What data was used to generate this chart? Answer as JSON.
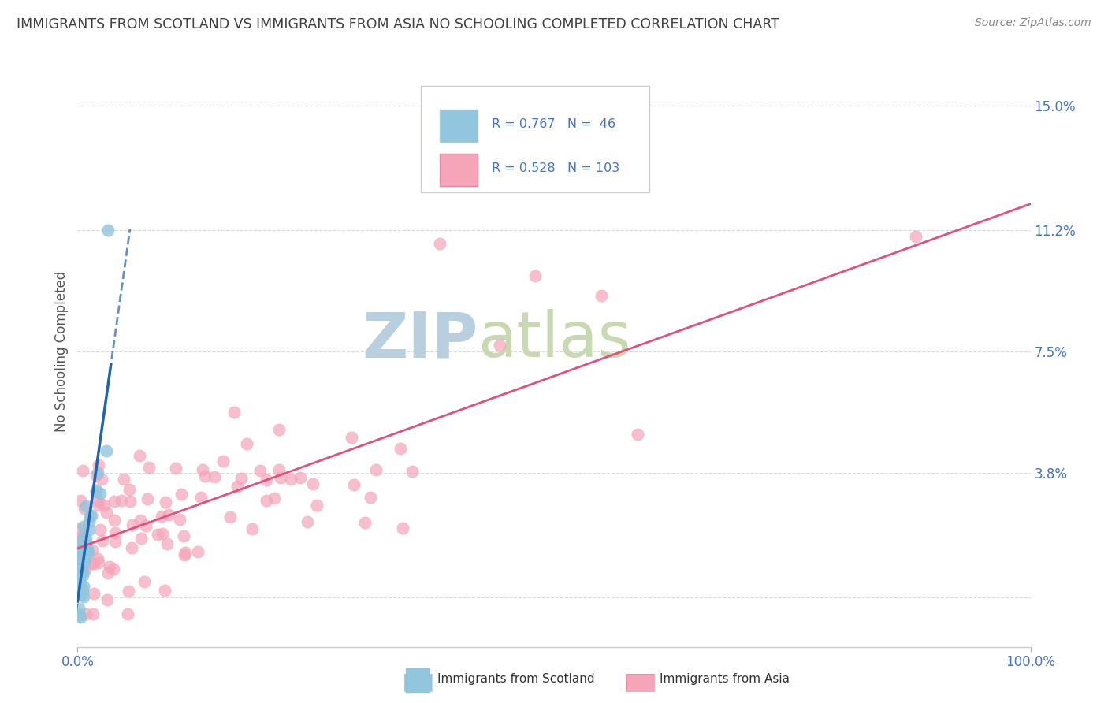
{
  "title": "IMMIGRANTS FROM SCOTLAND VS IMMIGRANTS FROM ASIA NO SCHOOLING COMPLETED CORRELATION CHART",
  "source": "Source: ZipAtlas.com",
  "ylabel": "No Schooling Completed",
  "xlim": [
    0,
    100
  ],
  "ylim": [
    -1.5,
    16.5
  ],
  "yticks": [
    3.8,
    7.5,
    11.2,
    15.0
  ],
  "ytick_labels": [
    "3.8%",
    "7.5%",
    "11.2%",
    "15.0%"
  ],
  "xtick_labels_edge": [
    "0.0%",
    "100.0%"
  ],
  "legend_r_scotland": "0.767",
  "legend_n_scotland": "46",
  "legend_r_asia": "0.528",
  "legend_n_asia": "103",
  "scotland_color": "#92c5de",
  "asia_color": "#f4a5b8",
  "trend_scotland_color": "#2166ac",
  "trend_asia_color": "#e05080",
  "watermark_zip": "ZIP",
  "watermark_atlas": "atlas",
  "watermark_color_zip": "#b8cfe0",
  "watermark_color_atlas": "#c8d8b0",
  "background_color": "#ffffff",
  "grid_color": "#d8d8d8",
  "tick_label_color": "#4472c4",
  "title_color": "#404040",
  "axis_label_color": "#555555",
  "legend_text_color": "#4472c4"
}
